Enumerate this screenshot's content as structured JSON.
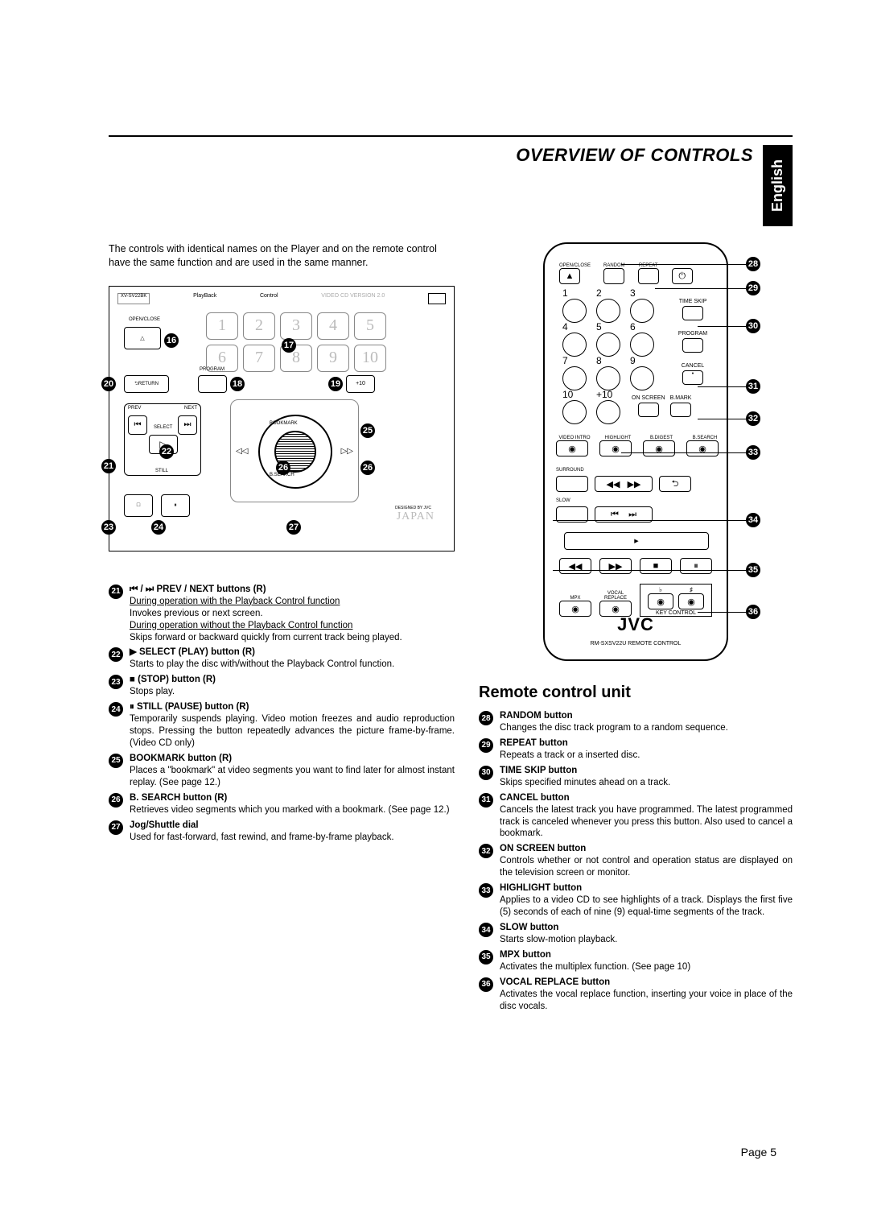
{
  "header": {
    "section_title": "OVERVIEW OF CONTROLS",
    "language_tab": "English"
  },
  "intro_text": "The controls with identical names on the Player and on the remote control have the same function and are used in the same manner.",
  "player_diagram": {
    "top_labels": {
      "playback": "PlayBack",
      "control": "Control",
      "version": "VIDEO CD VERSION 2.0"
    },
    "open_close": "OPEN/CLOSE",
    "return": "RETURN",
    "program": "PROGRAM",
    "plus10": "+10",
    "prev": "PREV",
    "next": "NEXT",
    "select": "SELECT",
    "still": "STILL",
    "bookmark": "BOOKMARK",
    "bsearch": "B.SEARCH",
    "designed": "DESIGNED BY JVC",
    "japan": "JAPAN",
    "num_buttons": [
      "1",
      "2",
      "3",
      "4",
      "5",
      "6",
      "7",
      "8",
      "9",
      "10"
    ],
    "callouts": {
      "c16": "16",
      "c17": "17",
      "c18": "18",
      "c19": "19",
      "c20": "20",
      "c21": "21",
      "c22": "22",
      "c23": "23",
      "c24": "24",
      "c25": "25",
      "c26": "26",
      "c27": "27"
    }
  },
  "player_descriptions": [
    {
      "n": "21",
      "title": "⏮ / ⏭ PREV / NEXT buttons (R)",
      "body_lines": [
        {
          "t": "During operation with the Playback Control function",
          "u": true
        },
        {
          "t": "Invokes previous or next screen."
        },
        {
          "t": "During operation without the Playback Control function",
          "u": true
        },
        {
          "t": "Skips forward or backward quickly from current track being played."
        }
      ]
    },
    {
      "n": "22",
      "title": "▶ SELECT (PLAY) button (R)",
      "body_lines": [
        {
          "t": "Starts to play the disc with/without the Playback Control function."
        }
      ]
    },
    {
      "n": "23",
      "title": "■ (STOP) button (R)",
      "body_lines": [
        {
          "t": "Stops play."
        }
      ]
    },
    {
      "n": "24",
      "title": "⏸ STILL (PAUSE) button (R)",
      "body_lines": [
        {
          "t": "Temporarily suspends playing. Video motion freezes and audio reproduction stops. Pressing the button repeatedly advances the picture frame-by-frame. (Video CD only)"
        }
      ]
    },
    {
      "n": "25",
      "title": "BOOKMARK button (R)",
      "body_lines": [
        {
          "t": "Places a \"bookmark\" at video segments you want to find later for almost instant replay.  (See page 12.)"
        }
      ]
    },
    {
      "n": "26",
      "title": "B. SEARCH button (R)",
      "body_lines": [
        {
          "t": "Retrieves video segments which you marked with a bookmark. (See page 12.)"
        }
      ]
    },
    {
      "n": "27",
      "title": "Jog/Shuttle dial",
      "body_lines": [
        {
          "t": "Used for fast-forward, fast rewind, and frame-by-frame playback."
        }
      ]
    }
  ],
  "remote": {
    "subsection_title": "Remote control unit",
    "top_row": {
      "open": "OPEN/CLOSE",
      "random": "RANDOM",
      "repeat": "REPEAT",
      "power": "⏻"
    },
    "side": {
      "timeskip": "TIME SKIP",
      "program": "PROGRAM",
      "cancel": "CANCEL",
      "onscreen": "ON SCREEN",
      "bmark": "B.MARK"
    },
    "row_labels": {
      "videointro": "VIDEO INTRO",
      "highlight": "HIGHLIGHT",
      "bdigest": "B.DIGEST",
      "bsearch": "B.SEARCH",
      "surround": "SURROUND",
      "slow": "SLOW",
      "mpx": "MPX",
      "vocal": "VOCAL REPLACE",
      "keyctrl": "KEY CONTROL"
    },
    "numpad": [
      "1",
      "2",
      "3",
      "4",
      "5",
      "6",
      "7",
      "8",
      "9",
      "10",
      "+10"
    ],
    "logo": "JVC",
    "model": "RM-SXSV22U  REMOTE  CONTROL",
    "callouts": {
      "c28": "28",
      "c29": "29",
      "c30": "30",
      "c31": "31",
      "c32": "32",
      "c33": "33",
      "c34": "34",
      "c35": "35",
      "c36": "36"
    }
  },
  "remote_descriptions": [
    {
      "n": "28",
      "title": "RANDOM button",
      "body_lines": [
        {
          "t": "Changes the disc track program to a random sequence."
        }
      ]
    },
    {
      "n": "29",
      "title": "REPEAT button",
      "body_lines": [
        {
          "t": "Repeats a track or a inserted disc."
        }
      ]
    },
    {
      "n": "30",
      "title": "TIME SKIP button",
      "body_lines": [
        {
          "t": "Skips specified minutes ahead on a track."
        }
      ]
    },
    {
      "n": "31",
      "title": "CANCEL button",
      "body_lines": [
        {
          "t": "Cancels the latest track you have programmed. The latest programmed track is canceled whenever you press this button. Also used to cancel a bookmark."
        }
      ]
    },
    {
      "n": "32",
      "title": "ON SCREEN button",
      "body_lines": [
        {
          "t": "Controls whether or not control and operation status are displayed on the television screen or monitor."
        }
      ]
    },
    {
      "n": "33",
      "title": "HIGHLIGHT button",
      "body_lines": [
        {
          "t": "Applies to a video CD to see highlights of a track. Displays the first five (5) seconds of each of nine (9) equal-time segments of the track."
        }
      ]
    },
    {
      "n": "34",
      "title": "SLOW button",
      "body_lines": [
        {
          "t": "Starts slow-motion playback."
        }
      ]
    },
    {
      "n": "35",
      "title": "MPX button",
      "body_lines": [
        {
          "t": "Activates the multiplex function. (See page 10)"
        }
      ]
    },
    {
      "n": "36",
      "title": "VOCAL REPLACE button",
      "body_lines": [
        {
          "t": "Activates the vocal replace function, inserting your voice in place of the disc vocals."
        }
      ]
    }
  ],
  "footer": {
    "page": "Page 5"
  }
}
